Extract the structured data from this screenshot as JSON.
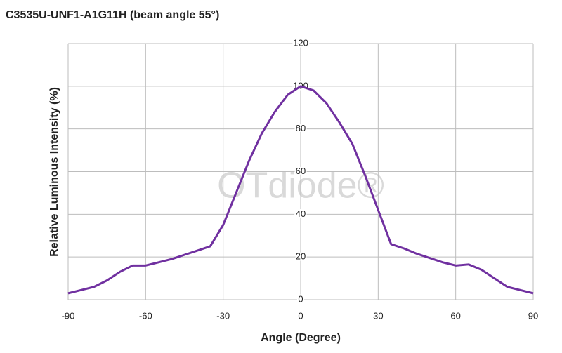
{
  "chart_data": {
    "type": "line",
    "title": "C3535U-UNF1-A1G11H (beam angle 55°)",
    "x_label": "Angle (Degree)",
    "y_label": "Relative Luminous Intensity (%)",
    "watermark": "OTdiode®",
    "x": [
      -90,
      -85,
      -80,
      -75,
      -70,
      -65,
      -60,
      -55,
      -50,
      -45,
      -40,
      -35,
      -30,
      -25,
      -20,
      -15,
      -10,
      -5,
      0,
      5,
      10,
      15,
      20,
      25,
      30,
      35,
      40,
      45,
      50,
      55,
      60,
      65,
      70,
      75,
      80,
      85,
      90
    ],
    "values": [
      3,
      4.5,
      6,
      9,
      13,
      16,
      16,
      17.5,
      19,
      21,
      23,
      25,
      35,
      50,
      65,
      78,
      88,
      96,
      100,
      98,
      92,
      83,
      73,
      58,
      42,
      26,
      24,
      21.5,
      19.5,
      17.5,
      16,
      16.5,
      14,
      10,
      6,
      4.5,
      3
    ],
    "color": "#7030a0",
    "xlim": [
      -90,
      90
    ],
    "xticks": [
      -90,
      -60,
      -30,
      0,
      30,
      60,
      90
    ],
    "ylim": [
      0,
      120
    ],
    "yticks": [
      0,
      20,
      40,
      60,
      80,
      100,
      120
    ],
    "grid": true
  }
}
